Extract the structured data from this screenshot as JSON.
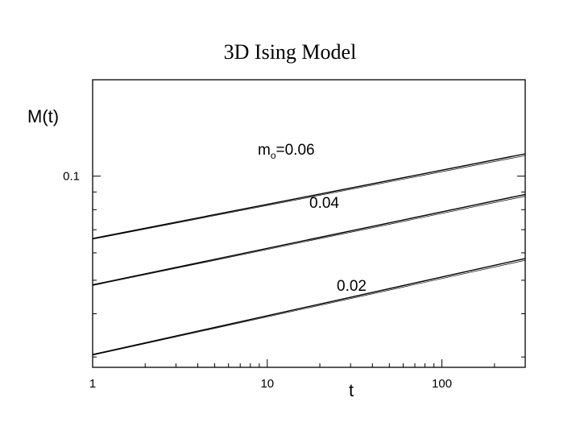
{
  "slide": {
    "title": "3D Ising Model"
  },
  "chart_data": {
    "type": "line",
    "title": "",
    "xlabel": "t",
    "ylabel": "M(t)",
    "x_scale": "log",
    "y_scale": "log",
    "xlim": [
      1,
      300
    ],
    "ylim": [
      0.028,
      0.19
    ],
    "x_ticks": [
      {
        "value": 1,
        "label": "1"
      },
      {
        "value": 10,
        "label": "10"
      },
      {
        "value": 100,
        "label": "100"
      }
    ],
    "y_ticks": [
      {
        "value": 0.1,
        "label": "0.1"
      }
    ],
    "grid": false,
    "series": [
      {
        "label_main": "m",
        "label_sub": "o",
        "label_rest": "=0.06",
        "x": [
          1,
          300
        ],
        "y": [
          0.066,
          0.116
        ]
      },
      {
        "label_main": "",
        "label_sub": "",
        "label_rest": "0.04",
        "x": [
          1,
          300
        ],
        "y": [
          0.0485,
          0.0885
        ]
      },
      {
        "label_main": "",
        "label_sub": "",
        "label_rest": "0.02",
        "x": [
          1,
          300
        ],
        "y": [
          0.0305,
          0.0578
        ]
      }
    ]
  }
}
